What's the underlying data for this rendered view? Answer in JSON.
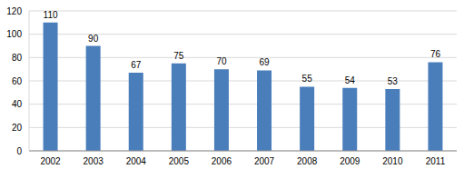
{
  "chart_data": {
    "type": "bar",
    "categories": [
      "2002",
      "2003",
      "2004",
      "2005",
      "2006",
      "2007",
      "2008",
      "2009",
      "2010",
      "2011"
    ],
    "values": [
      110,
      90,
      67,
      75,
      70,
      69,
      55,
      54,
      53,
      76
    ],
    "color": "#4a7ebb",
    "ylim": [
      0,
      120
    ],
    "yticks": [
      0,
      20,
      40,
      60,
      80,
      100,
      120
    ],
    "grid": true,
    "data_labels": true
  }
}
